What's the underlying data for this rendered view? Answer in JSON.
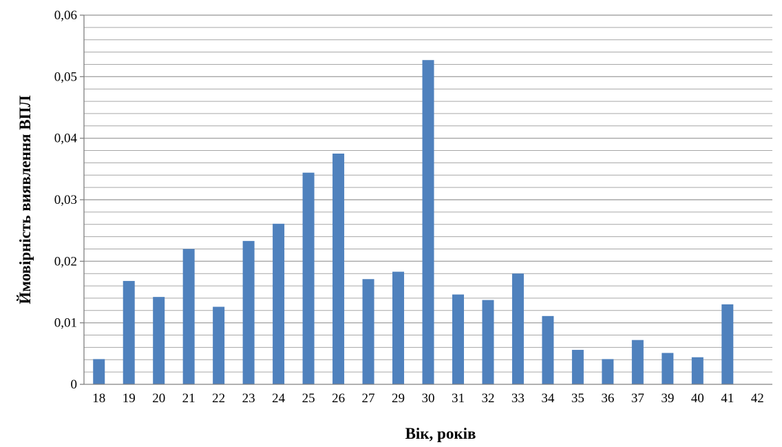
{
  "chart_data": {
    "type": "bar",
    "xlabel": "Вік, років",
    "ylabel": "Ймовірність виявлення ВПЛ",
    "ylim": [
      0,
      0.06
    ],
    "yticks": [
      "0",
      "0,01",
      "0,02",
      "0,03",
      "0,04",
      "0,05",
      "0,06"
    ],
    "categories": [
      "18",
      "19",
      "20",
      "21",
      "22",
      "23",
      "24",
      "25",
      "26",
      "27",
      "29",
      "30",
      "31",
      "32",
      "33",
      "34",
      "35",
      "36",
      "37",
      "39",
      "40",
      "41",
      "42"
    ],
    "values": [
      0.0041,
      0.0168,
      0.0142,
      0.022,
      0.0126,
      0.0233,
      0.0261,
      0.0344,
      0.0375,
      0.0171,
      0.0183,
      0.0527,
      0.0146,
      0.0137,
      0.018,
      0.0111,
      0.0056,
      0.0041,
      0.0072,
      0.0051,
      0.0044,
      0.013,
      0
    ],
    "grid": true,
    "minor_grid": true,
    "bar_color": "#4f81bd",
    "grid_color": "#a6a6a6"
  }
}
